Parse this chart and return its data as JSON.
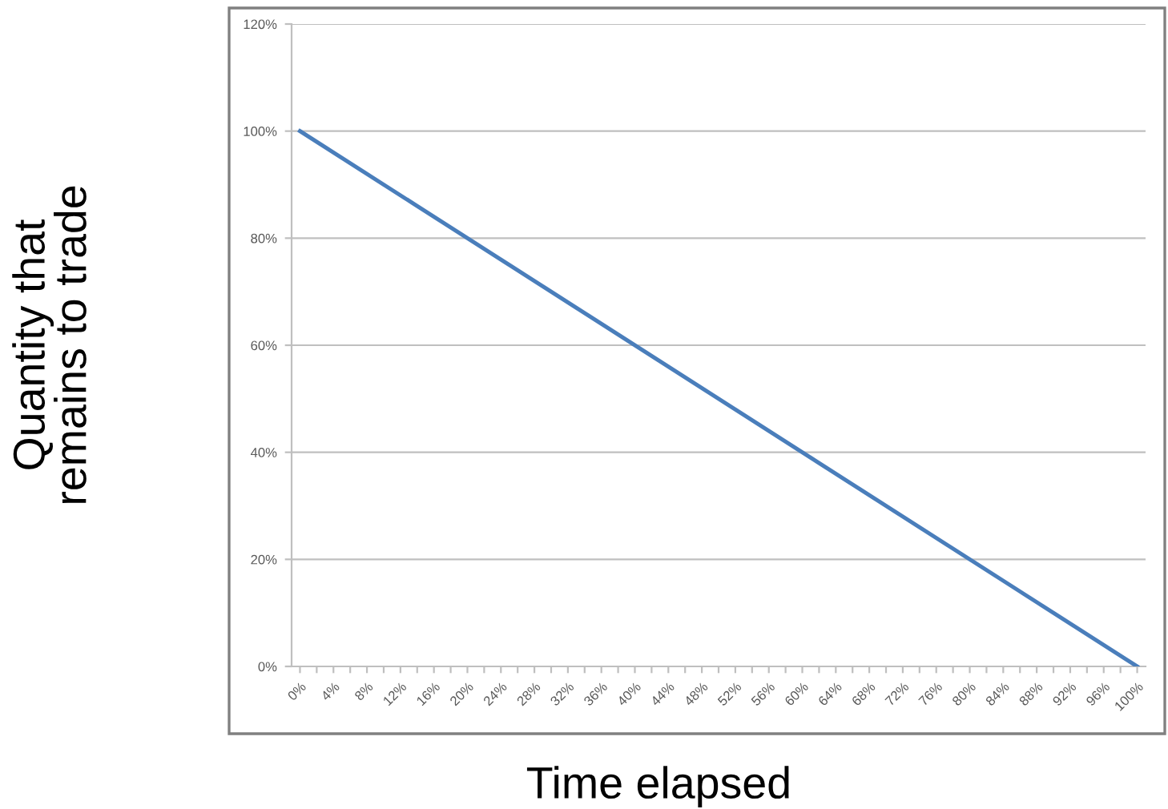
{
  "chart_data": {
    "type": "line",
    "xlabel": "Time elapsed",
    "ylabel": "Quantity that\nremains to trade",
    "series": [
      {
        "color": "#4a7ebb",
        "x": [
          0,
          100
        ],
        "values": [
          100,
          0
        ]
      }
    ],
    "xlim": [
      -1,
      101
    ],
    "xticks": [
      {
        "value": 0,
        "label": "0%"
      },
      {
        "value": 2,
        "label": null
      },
      {
        "value": 4,
        "label": "4%"
      },
      {
        "value": 6,
        "label": null
      },
      {
        "value": 8,
        "label": "8%"
      },
      {
        "value": 10,
        "label": null
      },
      {
        "value": 12,
        "label": "12%"
      },
      {
        "value": 14,
        "label": null
      },
      {
        "value": 16,
        "label": "16%"
      },
      {
        "value": 18,
        "label": null
      },
      {
        "value": 20,
        "label": "20%"
      },
      {
        "value": 22,
        "label": null
      },
      {
        "value": 24,
        "label": "24%"
      },
      {
        "value": 26,
        "label": null
      },
      {
        "value": 28,
        "label": "28%"
      },
      {
        "value": 30,
        "label": null
      },
      {
        "value": 32,
        "label": "32%"
      },
      {
        "value": 34,
        "label": null
      },
      {
        "value": 36,
        "label": "36%"
      },
      {
        "value": 38,
        "label": null
      },
      {
        "value": 40,
        "label": "40%"
      },
      {
        "value": 42,
        "label": null
      },
      {
        "value": 44,
        "label": "44%"
      },
      {
        "value": 46,
        "label": null
      },
      {
        "value": 48,
        "label": "48%"
      },
      {
        "value": 50,
        "label": null
      },
      {
        "value": 52,
        "label": "52%"
      },
      {
        "value": 54,
        "label": null
      },
      {
        "value": 56,
        "label": "56%"
      },
      {
        "value": 58,
        "label": null
      },
      {
        "value": 60,
        "label": "60%"
      },
      {
        "value": 62,
        "label": null
      },
      {
        "value": 64,
        "label": "64%"
      },
      {
        "value": 66,
        "label": null
      },
      {
        "value": 68,
        "label": "68%"
      },
      {
        "value": 70,
        "label": null
      },
      {
        "value": 72,
        "label": "72%"
      },
      {
        "value": 74,
        "label": null
      },
      {
        "value": 76,
        "label": "76%"
      },
      {
        "value": 78,
        "label": null
      },
      {
        "value": 80,
        "label": "80%"
      },
      {
        "value": 82,
        "label": null
      },
      {
        "value": 84,
        "label": "84%"
      },
      {
        "value": 86,
        "label": null
      },
      {
        "value": 88,
        "label": "88%"
      },
      {
        "value": 90,
        "label": null
      },
      {
        "value": 92,
        "label": "92%"
      },
      {
        "value": 94,
        "label": null
      },
      {
        "value": 96,
        "label": "96%"
      },
      {
        "value": 98,
        "label": null
      },
      {
        "value": 100,
        "label": "100%"
      }
    ],
    "ylim": [
      0,
      120
    ],
    "yticks": [
      {
        "value": 0,
        "label": "0%"
      },
      {
        "value": 20,
        "label": "20%"
      },
      {
        "value": 40,
        "label": "40%"
      },
      {
        "value": 60,
        "label": "60%"
      },
      {
        "value": 80,
        "label": "80%"
      },
      {
        "value": 100,
        "label": "100%"
      },
      {
        "value": 120,
        "label": "120%"
      }
    ],
    "grid": "y",
    "marker": "none",
    "line_style": "solid"
  }
}
